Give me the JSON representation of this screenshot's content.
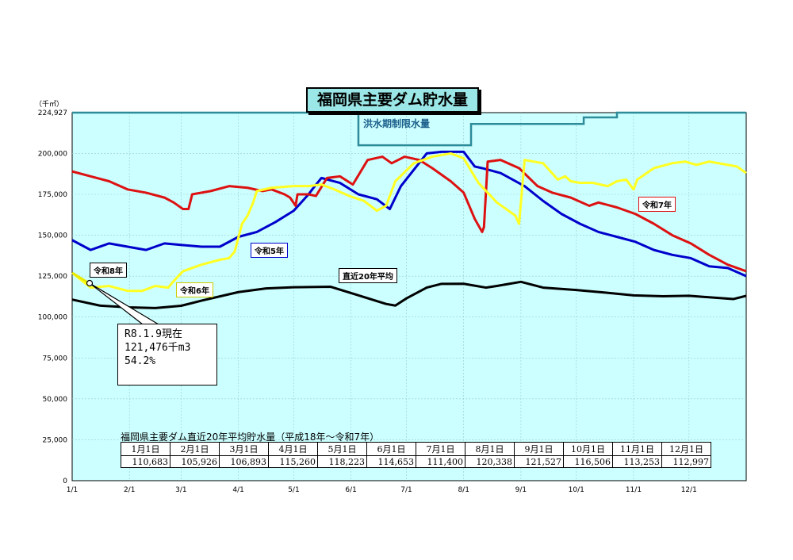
{
  "chart_data": {
    "type": "line",
    "title": "福岡県主要ダム貯水量",
    "y_unit": "（千㎥）",
    "ylim": [
      0,
      224927
    ],
    "y_ticks": [
      "0",
      "25,000",
      "50,000",
      "75,000",
      "100,000",
      "125,000",
      "150,000",
      "175,000",
      "200,000",
      "224,927"
    ],
    "y_tick_values": [
      0,
      25000,
      50000,
      75000,
      100000,
      125000,
      150000,
      175000,
      200000,
      224927
    ],
    "x_ticks": [
      "1/1",
      "2/1",
      "3/1",
      "4/1",
      "5/1",
      "6/1",
      "7/1",
      "8/1",
      "9/1",
      "10/1",
      "11/1",
      "12/1"
    ],
    "x_tick_days": [
      0,
      31,
      59,
      90,
      120,
      151,
      181,
      212,
      243,
      273,
      304,
      334
    ],
    "x_range_days": [
      0,
      365
    ],
    "grid": true,
    "background": "#ccffff",
    "flood_limit": {
      "label": "洪水期制限水量",
      "color": "#2e8b9a",
      "points": [
        [
          0,
          224927
        ],
        [
          155,
          224927
        ],
        [
          155,
          205000
        ],
        [
          216,
          205000
        ],
        [
          216,
          218000
        ],
        [
          277,
          218000
        ],
        [
          277,
          222000
        ],
        [
          295,
          222000
        ],
        [
          295,
          224927
        ],
        [
          365,
          224927
        ]
      ]
    },
    "series": [
      {
        "name": "令和8年",
        "color": "#e8e800",
        "points": [
          [
            0,
            127000
          ],
          [
            8,
            121476
          ]
        ]
      },
      {
        "name": "令和7年",
        "color": "#dd1111",
        "points": [
          [
            0,
            189000
          ],
          [
            10,
            186000
          ],
          [
            20,
            183000
          ],
          [
            30,
            178000
          ],
          [
            40,
            176000
          ],
          [
            50,
            173000
          ],
          [
            55,
            170000
          ],
          [
            60,
            166000
          ],
          [
            63,
            166000
          ],
          [
            65,
            175000
          ],
          [
            75,
            177000
          ],
          [
            85,
            180000
          ],
          [
            95,
            179000
          ],
          [
            103,
            177000
          ],
          [
            108,
            178000
          ],
          [
            115,
            175000
          ],
          [
            118,
            173000
          ],
          [
            121,
            168000
          ],
          [
            122,
            175000
          ],
          [
            128,
            175000
          ],
          [
            132,
            174000
          ],
          [
            138,
            185000
          ],
          [
            145,
            186000
          ],
          [
            152,
            181000
          ],
          [
            160,
            196000
          ],
          [
            168,
            198000
          ],
          [
            173,
            194000
          ],
          [
            180,
            198000
          ],
          [
            188,
            196000
          ],
          [
            195,
            191000
          ],
          [
            205,
            183000
          ],
          [
            212,
            176000
          ],
          [
            218,
            160000
          ],
          [
            222,
            152000
          ],
          [
            223,
            155000
          ],
          [
            225,
            195000
          ],
          [
            232,
            196000
          ],
          [
            242,
            191000
          ],
          [
            252,
            180000
          ],
          [
            260,
            176000
          ],
          [
            270,
            173000
          ],
          [
            280,
            168000
          ],
          [
            285,
            170000
          ],
          [
            295,
            167000
          ],
          [
            305,
            163000
          ],
          [
            315,
            157000
          ],
          [
            325,
            150000
          ],
          [
            335,
            145000
          ],
          [
            345,
            138000
          ],
          [
            355,
            132000
          ],
          [
            365,
            128000
          ]
        ]
      },
      {
        "name": "令和6年",
        "color": "#ffff22",
        "points": [
          [
            0,
            127000
          ],
          [
            10,
            118000
          ],
          [
            20,
            119000
          ],
          [
            30,
            116000
          ],
          [
            38,
            116000
          ],
          [
            45,
            119000
          ],
          [
            52,
            118000
          ],
          [
            55,
            122000
          ],
          [
            60,
            128000
          ],
          [
            70,
            132000
          ],
          [
            80,
            135000
          ],
          [
            85,
            136000
          ],
          [
            88,
            140000
          ],
          [
            92,
            157000
          ],
          [
            95,
            162000
          ],
          [
            98,
            170000
          ],
          [
            100,
            177000
          ],
          [
            108,
            179000
          ],
          [
            120,
            180000
          ],
          [
            128,
            180000
          ],
          [
            135,
            181000
          ],
          [
            142,
            178000
          ],
          [
            150,
            174000
          ],
          [
            158,
            171000
          ],
          [
            165,
            165000
          ],
          [
            170,
            168000
          ],
          [
            175,
            183000
          ],
          [
            185,
            194000
          ],
          [
            195,
            198000
          ],
          [
            205,
            200000
          ],
          [
            212,
            197000
          ],
          [
            220,
            182000
          ],
          [
            230,
            170000
          ],
          [
            240,
            162000
          ],
          [
            242,
            157000
          ],
          [
            245,
            196000
          ],
          [
            255,
            194000
          ],
          [
            263,
            184000
          ],
          [
            267,
            186000
          ],
          [
            270,
            183000
          ],
          [
            275,
            182000
          ],
          [
            282,
            182000
          ],
          [
            290,
            180000
          ],
          [
            295,
            183000
          ],
          [
            300,
            184000
          ],
          [
            304,
            178000
          ],
          [
            306,
            184000
          ],
          [
            315,
            191000
          ],
          [
            325,
            194000
          ],
          [
            332,
            195000
          ],
          [
            338,
            193000
          ],
          [
            345,
            195000
          ],
          [
            355,
            193000
          ],
          [
            360,
            192000
          ],
          [
            365,
            188000
          ]
        ]
      },
      {
        "name": "令和5年",
        "color": "#0000cc",
        "points": [
          [
            0,
            147000
          ],
          [
            10,
            141000
          ],
          [
            20,
            145000
          ],
          [
            30,
            143000
          ],
          [
            40,
            141000
          ],
          [
            50,
            145000
          ],
          [
            60,
            144000
          ],
          [
            70,
            143000
          ],
          [
            80,
            143000
          ],
          [
            90,
            149000
          ],
          [
            100,
            152000
          ],
          [
            110,
            158000
          ],
          [
            120,
            165000
          ],
          [
            128,
            175000
          ],
          [
            130,
            178000
          ],
          [
            135,
            185000
          ],
          [
            145,
            182000
          ],
          [
            155,
            175000
          ],
          [
            165,
            172000
          ],
          [
            172,
            166000
          ],
          [
            178,
            180000
          ],
          [
            185,
            190000
          ],
          [
            192,
            200000
          ],
          [
            200,
            201000
          ],
          [
            212,
            201000
          ],
          [
            218,
            192000
          ],
          [
            222,
            191000
          ],
          [
            232,
            188000
          ],
          [
            245,
            180000
          ],
          [
            255,
            171000
          ],
          [
            265,
            163000
          ],
          [
            275,
            157000
          ],
          [
            285,
            152000
          ],
          [
            295,
            149000
          ],
          [
            305,
            146000
          ],
          [
            315,
            141000
          ],
          [
            325,
            138000
          ],
          [
            335,
            136000
          ],
          [
            345,
            131000
          ],
          [
            355,
            130000
          ],
          [
            365,
            125000
          ]
        ]
      },
      {
        "name": "直近20年平均",
        "color": "#000000",
        "points": [
          [
            0,
            110683
          ],
          [
            15,
            107000
          ],
          [
            31,
            105926
          ],
          [
            45,
            105500
          ],
          [
            59,
            106893
          ],
          [
            70,
            110000
          ],
          [
            90,
            115260
          ],
          [
            105,
            117500
          ],
          [
            120,
            118223
          ],
          [
            140,
            118500
          ],
          [
            151,
            114653
          ],
          [
            170,
            108000
          ],
          [
            175,
            107000
          ],
          [
            181,
            111400
          ],
          [
            192,
            118000
          ],
          [
            200,
            120300
          ],
          [
            212,
            120338
          ],
          [
            224,
            118000
          ],
          [
            230,
            119000
          ],
          [
            243,
            121527
          ],
          [
            255,
            118000
          ],
          [
            273,
            116506
          ],
          [
            288,
            115000
          ],
          [
            304,
            113253
          ],
          [
            320,
            112700
          ],
          [
            334,
            112997
          ],
          [
            358,
            111000
          ],
          [
            365,
            113000
          ]
        ]
      }
    ],
    "annotation": {
      "lines": [
        "R8.1.9現在",
        "121,476千m3",
        "54.2%"
      ]
    }
  },
  "labels": {
    "r8": "令和8年",
    "r7": "令和7年",
    "r6": "令和6年",
    "r5": "令和5年",
    "avg": "直近20年平均"
  },
  "table": {
    "title": "福岡県主要ダム直近20年平均貯水量（平成18年～令和7年）",
    "headers": [
      "1月1日",
      "2月1日",
      "3月1日",
      "4月1日",
      "5月1日",
      "6月1日",
      "7月1日",
      "8月1日",
      "9月1日",
      "10月1日",
      "11月1日",
      "12月1日"
    ],
    "values": [
      "110,683",
      "105,926",
      "106,893",
      "115,260",
      "118,223",
      "114,653",
      "111,400",
      "120,338",
      "121,527",
      "116,506",
      "113,253",
      "112,997"
    ]
  }
}
